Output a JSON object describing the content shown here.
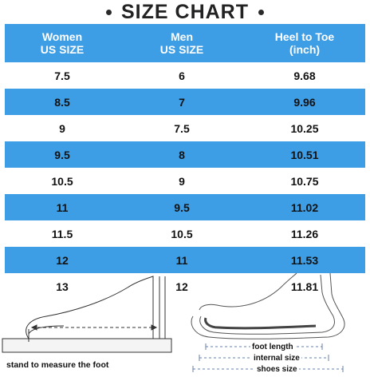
{
  "title": "SIZE CHART",
  "headers": [
    [
      "Women",
      "US SIZE"
    ],
    [
      "Men",
      "US SIZE"
    ],
    [
      "Heel to Toe",
      "(inch)"
    ]
  ],
  "rows": [
    [
      "7.5",
      "6",
      "9.68"
    ],
    [
      "8.5",
      "7",
      "9.96"
    ],
    [
      "9",
      "7.5",
      "10.25"
    ],
    [
      "9.5",
      "8",
      "10.51"
    ],
    [
      "10.5",
      "9",
      "10.75"
    ],
    [
      "11",
      "9.5",
      "11.02"
    ],
    [
      "11.5",
      "10.5",
      "11.26"
    ],
    [
      "12",
      "11",
      "11.53"
    ],
    [
      "13",
      "12",
      "11.81"
    ]
  ],
  "labels": {
    "stand": "stand to measure the foot",
    "foot_length": "foot length",
    "internal_size": "internal size",
    "shoes_size": "shoes size"
  },
  "colors": {
    "band": "#3d9ee6",
    "text": "#111111"
  }
}
